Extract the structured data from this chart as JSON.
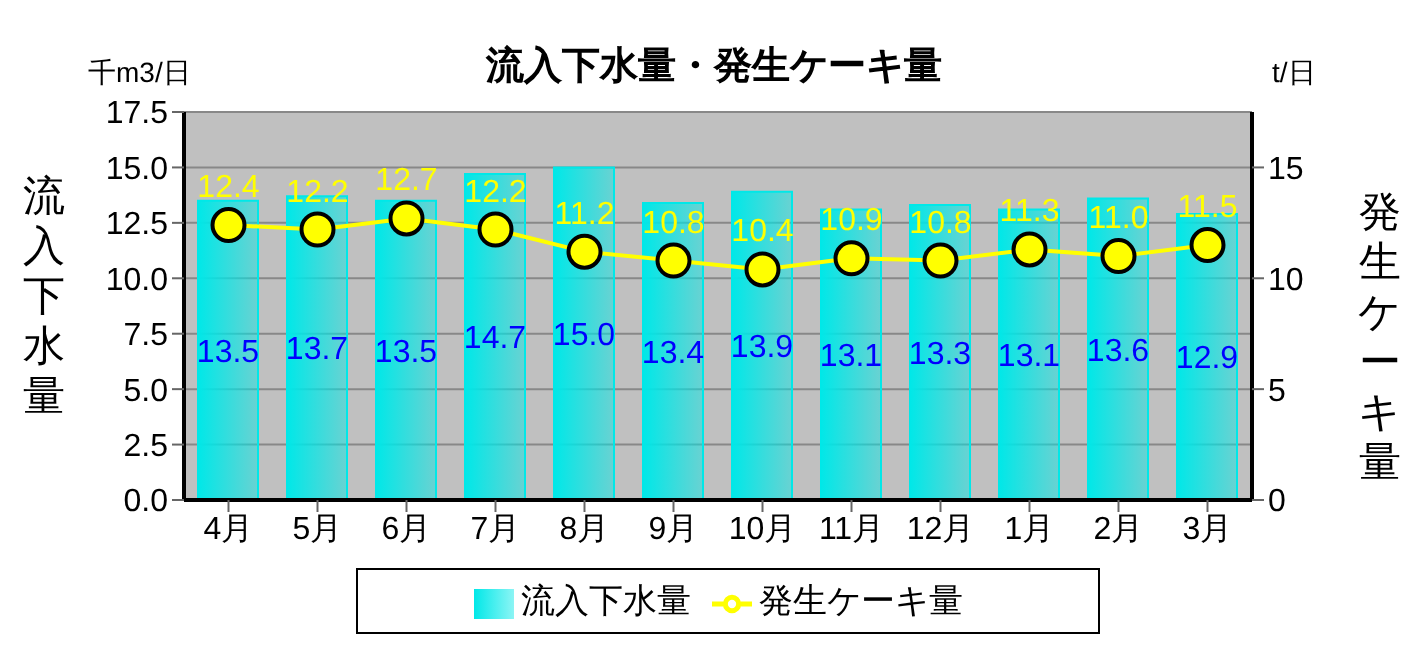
{
  "chart_data": {
    "type": "bar",
    "title": "流入下水量・発生ケーキ量",
    "ylabel": "流入下水量",
    "y2label": "発生ケーキ量",
    "annotations": [
      "千m3/日",
      "t/日"
    ],
    "categories": [
      "4月",
      "5月",
      "6月",
      "7月",
      "8月",
      "9月",
      "10月",
      "11月",
      "12月",
      "1月",
      "2月",
      "3月"
    ],
    "series": [
      {
        "name": "流入下水量",
        "color": "#00e8e8",
        "values": [
          13.5,
          13.7,
          13.5,
          14.7,
          15.0,
          13.4,
          13.9,
          13.1,
          13.3,
          13.1,
          13.6,
          12.9
        ],
        "value_labels": [
          "13.5",
          "13.7",
          "13.5",
          "14.7",
          "15.0",
          "13.4",
          "13.9",
          "13.1",
          "13.3",
          "13.1",
          "13.6",
          "12.9"
        ]
      },
      {
        "name": "発生ケーキ量",
        "type": "line",
        "axis": "y2",
        "color": "#ffff00",
        "marker": "circle",
        "values": [
          12.4,
          12.2,
          12.7,
          12.2,
          11.2,
          10.8,
          10.4,
          10.9,
          10.8,
          11.3,
          11.0,
          11.5
        ],
        "value_labels": [
          "12.4",
          "12.2",
          "12.7",
          "12.2",
          "11.2",
          "10.8",
          "10.4",
          "10.9",
          "10.8",
          "11.3",
          "11.0",
          "11.5"
        ]
      }
    ],
    "ylim": [
      0,
      17.5
    ],
    "yticks": [
      {
        "value": 0,
        "label": "0.0"
      },
      {
        "value": 2.5,
        "label": "2.5"
      },
      {
        "value": 5,
        "label": "5.0"
      },
      {
        "value": 7.5,
        "label": "7.5"
      },
      {
        "value": 10,
        "label": "10.0"
      },
      {
        "value": 12.5,
        "label": "12.5"
      },
      {
        "value": 15,
        "label": "15.0"
      },
      {
        "value": 17.5,
        "label": "17.5"
      }
    ],
    "y2lim": [
      0,
      17.5
    ],
    "y2ticks": [
      0,
      5,
      10,
      15
    ],
    "grid": "y",
    "legend": "bottom"
  }
}
